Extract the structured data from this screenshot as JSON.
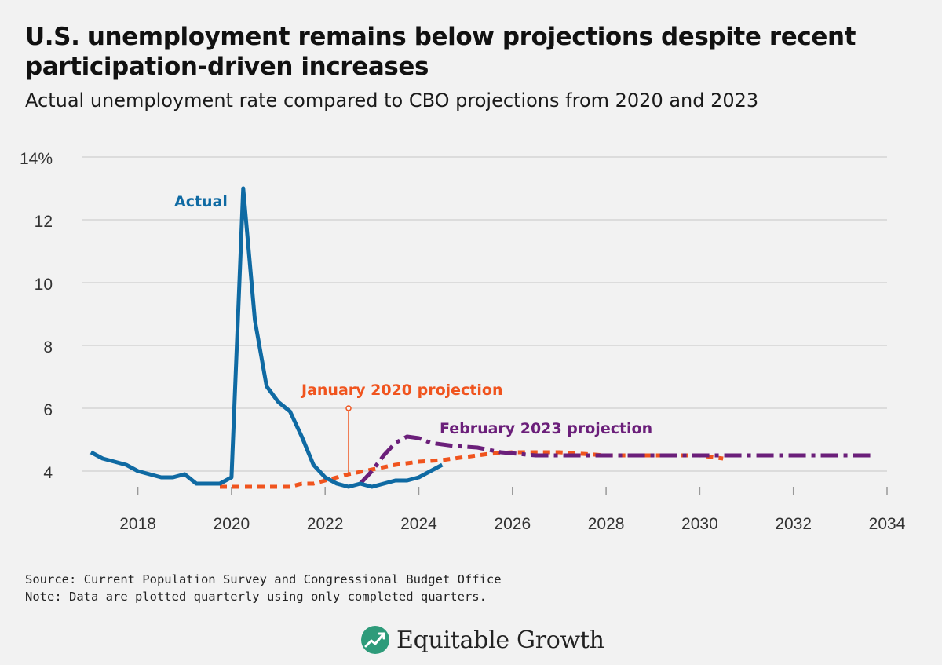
{
  "header": {
    "title": "U.S. unemployment remains below projections despite recent participation-driven increases",
    "subtitle": "Actual unemployment rate compared to CBO projections from 2020 and 2023"
  },
  "footer": {
    "source": "Source: Current Population Survey and Congressional Budget Office",
    "note": "Note: Data are plotted quarterly using only completed quarters.",
    "logo_text": "Equitable Growth"
  },
  "colors": {
    "actual": "#0f6aa3",
    "jan2020": "#f0541e",
    "feb2023": "#6b1f7a",
    "grid": "#d4d4d4",
    "logo": "#2e9b7a"
  },
  "chart_data": {
    "type": "line",
    "title": "U.S. unemployment remains below projections despite recent participation-driven increases",
    "subtitle": "Actual unemployment rate compared to CBO projections from 2020 and 2023",
    "xlabel": "",
    "ylabel": "",
    "xlim": [
      2016.8,
      2034
    ],
    "ylim": [
      3,
      14
    ],
    "x_ticks": [
      2018,
      2020,
      2022,
      2024,
      2026,
      2028,
      2030,
      2032,
      2034
    ],
    "y_ticks": [
      4,
      6,
      8,
      10,
      12,
      14
    ],
    "y_tick_labels": [
      "4",
      "6",
      "8",
      "10",
      "12",
      "14%"
    ],
    "grid": true,
    "series": [
      {
        "name": "Actual",
        "style": "solid",
        "points": [
          [
            2017.0,
            4.6
          ],
          [
            2017.25,
            4.4
          ],
          [
            2017.5,
            4.3
          ],
          [
            2017.75,
            4.2
          ],
          [
            2018.0,
            4.0
          ],
          [
            2018.25,
            3.9
          ],
          [
            2018.5,
            3.8
          ],
          [
            2018.75,
            3.8
          ],
          [
            2019.0,
            3.9
          ],
          [
            2019.25,
            3.6
          ],
          [
            2019.5,
            3.6
          ],
          [
            2019.75,
            3.6
          ],
          [
            2020.0,
            3.8
          ],
          [
            2020.25,
            13.0
          ],
          [
            2020.5,
            8.8
          ],
          [
            2020.75,
            6.7
          ],
          [
            2021.0,
            6.2
          ],
          [
            2021.25,
            5.9
          ],
          [
            2021.5,
            5.1
          ],
          [
            2021.75,
            4.2
          ],
          [
            2022.0,
            3.8
          ],
          [
            2022.25,
            3.6
          ],
          [
            2022.5,
            3.5
          ],
          [
            2022.75,
            3.6
          ],
          [
            2023.0,
            3.5
          ],
          [
            2023.25,
            3.6
          ],
          [
            2023.5,
            3.7
          ],
          [
            2023.75,
            3.7
          ],
          [
            2024.0,
            3.8
          ],
          [
            2024.25,
            4.0
          ],
          [
            2024.5,
            4.2
          ]
        ]
      },
      {
        "name": "January 2020 projection",
        "style": "dotted",
        "points": [
          [
            2019.75,
            3.5
          ],
          [
            2020.0,
            3.5
          ],
          [
            2020.5,
            3.5
          ],
          [
            2021.0,
            3.5
          ],
          [
            2021.25,
            3.5
          ],
          [
            2021.5,
            3.6
          ],
          [
            2021.75,
            3.6
          ],
          [
            2022.0,
            3.7
          ],
          [
            2022.5,
            3.9
          ],
          [
            2023.0,
            4.05
          ],
          [
            2023.5,
            4.2
          ],
          [
            2024.0,
            4.3
          ],
          [
            2024.5,
            4.35
          ],
          [
            2025.0,
            4.45
          ],
          [
            2025.5,
            4.55
          ],
          [
            2026.0,
            4.6
          ],
          [
            2026.5,
            4.6
          ],
          [
            2027.0,
            4.6
          ],
          [
            2027.5,
            4.55
          ],
          [
            2028.0,
            4.5
          ],
          [
            2028.5,
            4.5
          ],
          [
            2029.0,
            4.5
          ],
          [
            2029.5,
            4.5
          ],
          [
            2030.0,
            4.5
          ],
          [
            2030.5,
            4.4
          ]
        ]
      },
      {
        "name": "February 2023 projection",
        "style": "dashdot",
        "points": [
          [
            2022.75,
            3.6
          ],
          [
            2023.0,
            4.0
          ],
          [
            2023.25,
            4.5
          ],
          [
            2023.5,
            4.9
          ],
          [
            2023.75,
            5.1
          ],
          [
            2024.0,
            5.05
          ],
          [
            2024.25,
            4.9
          ],
          [
            2024.75,
            4.8
          ],
          [
            2025.25,
            4.75
          ],
          [
            2025.75,
            4.6
          ],
          [
            2026.5,
            4.5
          ],
          [
            2027.0,
            4.5
          ],
          [
            2028.0,
            4.5
          ],
          [
            2029.0,
            4.5
          ],
          [
            2030.0,
            4.5
          ],
          [
            2031.0,
            4.5
          ],
          [
            2032.0,
            4.5
          ],
          [
            2033.0,
            4.5
          ],
          [
            2033.75,
            4.5
          ]
        ]
      }
    ],
    "annotations": [
      {
        "text": "Actual",
        "series": "Actual"
      },
      {
        "text": "January 2020 projection",
        "series": "January 2020 projection",
        "pointer_at": [
          2022.5,
          3.9
        ],
        "pointer_top": 6.0
      },
      {
        "text": "February 2023 projection",
        "series": "February 2023 projection"
      }
    ]
  }
}
